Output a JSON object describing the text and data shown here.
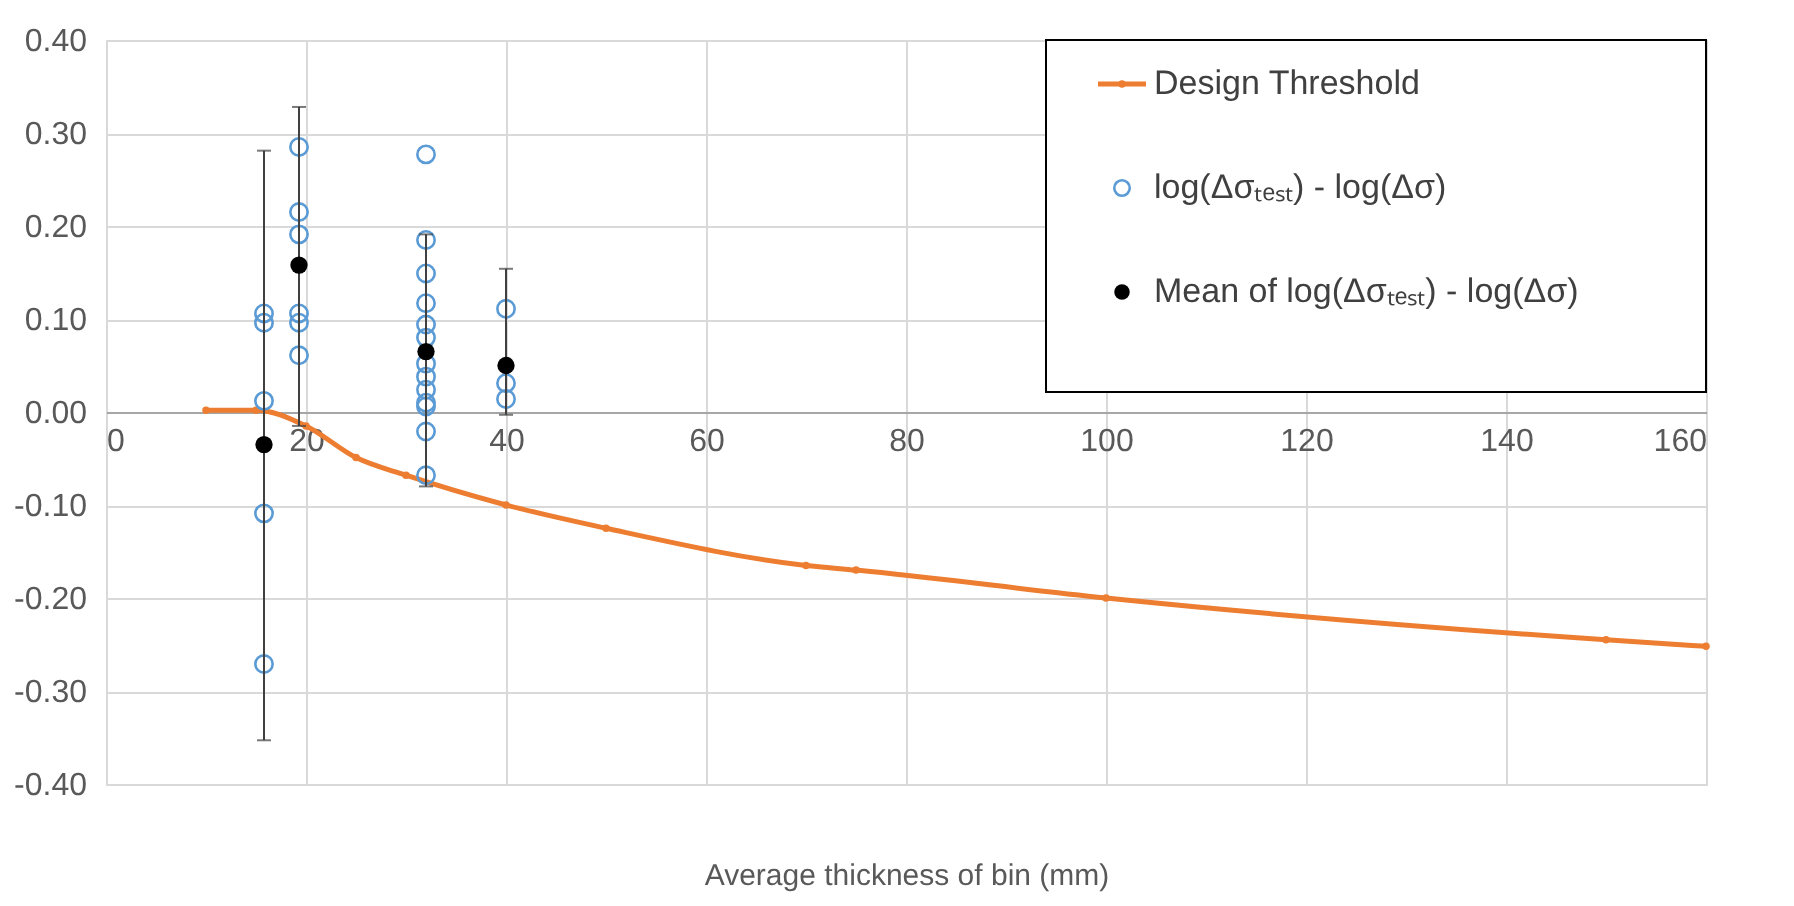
{
  "chart_data": {
    "type": "scatter",
    "xlabel": "Average thickness of bin (mm)",
    "xlim": [
      0,
      160
    ],
    "xticks": [
      0,
      20,
      40,
      60,
      80,
      100,
      120,
      140,
      160
    ],
    "ylim": [
      -0.4,
      0.4
    ],
    "yticks": [
      {
        "value": -0.4,
        "label": "-0.40"
      },
      {
        "value": -0.3,
        "label": "-0.30"
      },
      {
        "value": -0.2,
        "label": "-0.20"
      },
      {
        "value": -0.1,
        "label": "-0.10"
      },
      {
        "value": 0,
        "label": "0.00"
      },
      {
        "value": 0.1,
        "label": "0.10"
      },
      {
        "value": 0.2,
        "label": "0.20"
      },
      {
        "value": 0.3,
        "label": "0.30"
      },
      {
        "value": 0.4,
        "label": "0.40"
      }
    ],
    "grid": true,
    "legend": "top right",
    "series": [
      {
        "name": "Design Threshold",
        "type": "line",
        "color": "#ed7d31",
        "marker": "circle",
        "line_style": "solid",
        "x": [
          10,
          15,
          20,
          25,
          30,
          40,
          50,
          70,
          75,
          100,
          150,
          160
        ],
        "values": [
          0.002,
          0.002,
          -0.015,
          -0.049,
          -0.068,
          -0.1,
          -0.125,
          -0.165,
          -0.17,
          -0.2,
          -0.245,
          -0.252
        ]
      },
      {
        "name": "log(Δσₜₑₛₜ) - log(Δσ)",
        "color": "#5b9bd5",
        "marker": "circle",
        "x": [
          15.8,
          15.8,
          15.8,
          15.8,
          15.8,
          19.3,
          19.3,
          19.3,
          19.3,
          19.3,
          19.3,
          32,
          32,
          32,
          32,
          32,
          32,
          32,
          32,
          32,
          32,
          32,
          32,
          32,
          40,
          40,
          40
        ],
        "values": [
          0.106,
          0.096,
          0.012,
          -0.109,
          -0.271,
          0.285,
          0.215,
          0.191,
          0.106,
          0.096,
          0.061,
          0.277,
          0.185,
          0.149,
          0.117,
          0.094,
          0.08,
          0.052,
          0.038,
          0.024,
          0.01,
          0.006,
          -0.021,
          -0.068,
          0.111,
          0.031,
          0.014
        ]
      },
      {
        "name": "Mean of log(Δσₜₑₛₜ) - log(Δσ)",
        "color": "#000000",
        "marker": "circle",
        "x": [
          15.8,
          19.3,
          32,
          40
        ],
        "values": [
          -0.035,
          0.158,
          0.065,
          0.05
        ],
        "errors": [
          [
            -0.353,
            0.281
          ],
          [
            -0.015,
            0.328
          ],
          [
            -0.08,
            0.191
          ],
          [
            -0.003,
            0.154
          ]
        ]
      }
    ]
  }
}
